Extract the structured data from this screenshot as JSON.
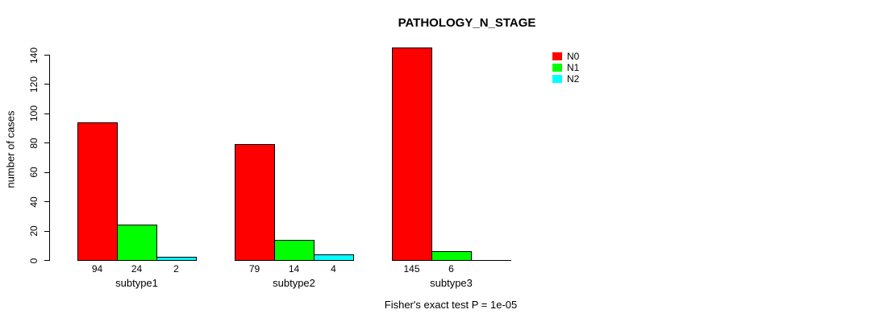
{
  "chart_data": {
    "type": "bar",
    "title": "PATHOLOGY_N_STAGE",
    "ylabel": "number of cases",
    "xlabel": "",
    "caption": "Fisher's exact test P = 1e-05",
    "categories": [
      "subtype1",
      "subtype2",
      "subtype3"
    ],
    "series": [
      {
        "name": "N0",
        "color": "#FF0000",
        "values": [
          94,
          79,
          145
        ]
      },
      {
        "name": "N1",
        "color": "#00FF00",
        "values": [
          24,
          14,
          6
        ]
      },
      {
        "name": "N2",
        "color": "#00FFFF",
        "values": [
          2,
          4,
          0
        ]
      }
    ],
    "bar_value_labels": [
      [
        "94",
        "24",
        "2"
      ],
      [
        "79",
        "14",
        "4"
      ],
      [
        "145",
        "6",
        ""
      ]
    ],
    "y_ticks": [
      "0",
      "20",
      "40",
      "60",
      "80",
      "100",
      "120",
      "140"
    ],
    "ylim": [
      0,
      140
    ],
    "grid": false,
    "legend_position": "right",
    "colors": {
      "axis": "#000000",
      "text": "#000000",
      "background": "#FFFFFF"
    }
  }
}
